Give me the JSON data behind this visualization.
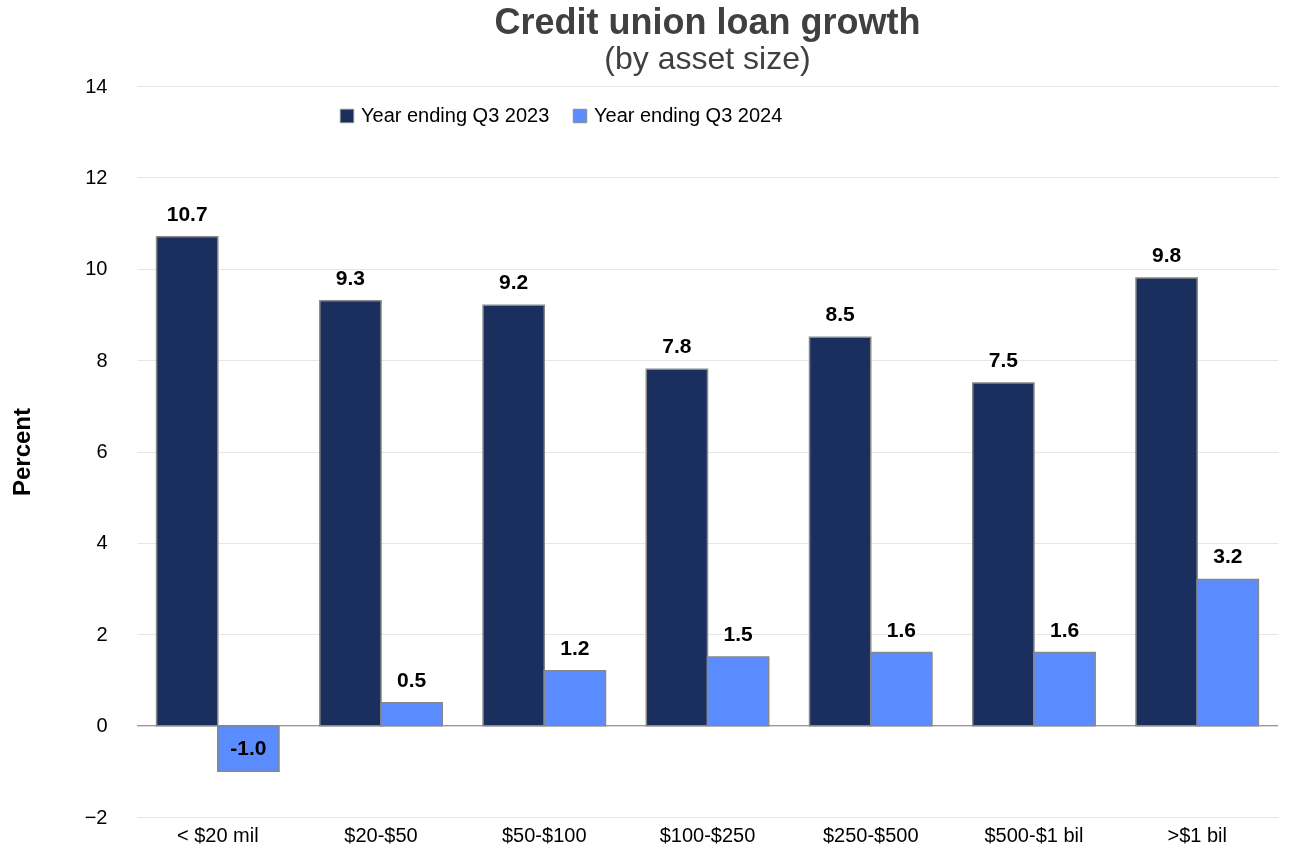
{
  "chart_data": {
    "type": "bar",
    "title": "Credit union loan growth",
    "subtitle": "(by asset size)",
    "ylabel": "Percent",
    "categories": [
      "< $20 mil",
      "$20-$50",
      "$50-$100",
      "$100-$250",
      "$250-$500",
      "$500-$1 bil",
      ">$1 bil"
    ],
    "series": [
      {
        "name": "Year ending Q3 2023",
        "color": "#1b2f5f",
        "values": [
          10.7,
          9.3,
          9.2,
          7.8,
          8.5,
          7.5,
          9.8
        ],
        "value_labels": [
          "10.7",
          "9.3",
          "9.2",
          "7.8",
          "8.5",
          "7.5",
          "9.8"
        ]
      },
      {
        "name": "Year ending Q3 2024",
        "color": "#5b8cff",
        "values": [
          -1.0,
          0.5,
          1.2,
          1.5,
          1.6,
          1.6,
          3.2
        ],
        "value_labels": [
          "-1.0",
          "0.5",
          "1.2",
          "1.5",
          "1.6",
          "1.6",
          "3.2"
        ]
      }
    ],
    "ylim": [
      -2,
      14
    ],
    "yticks": [
      -2,
      0,
      2,
      4,
      6,
      8,
      10,
      12,
      14
    ],
    "grid": "y",
    "legend": "top"
  }
}
